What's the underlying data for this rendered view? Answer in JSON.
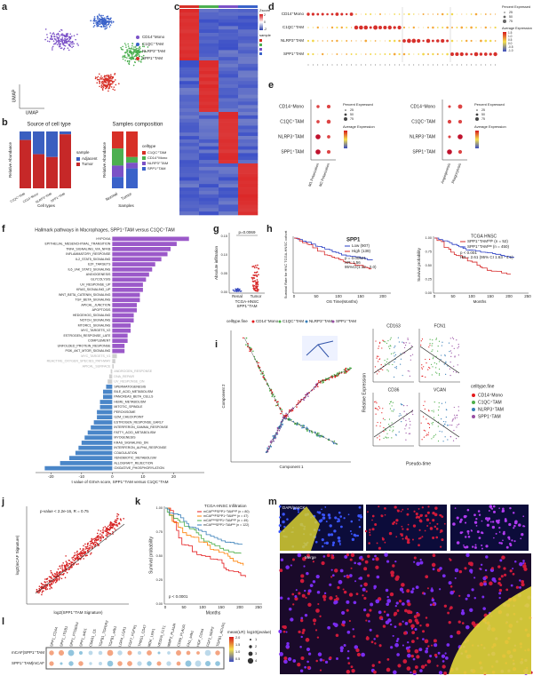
{
  "panels": {
    "a": {
      "label": "a",
      "axis_x": "UMAP",
      "axis_y": "UMAP",
      "legend": [
        "CD14⁺Mono",
        "C1QC⁺TAM",
        "NLRP3⁺TAM",
        "SPP1⁺TAM"
      ],
      "colors": [
        "#7b52c7",
        "#3a62c9",
        "#4caf50",
        "#d73027"
      ]
    },
    "b": {
      "label": "b",
      "title_left": "Source of cell type",
      "title_right": "Samples composition",
      "ylabel": "Relative Abundance",
      "xlabel_left": "Cell types",
      "xlabel_right": "Samples",
      "legend_left_title": "sample",
      "legend_left": [
        "Adjacent",
        "Tumor"
      ],
      "legend_right_title": "celltype",
      "legend_right": [
        "C1QC⁺TAM",
        "CD14⁺Mono",
        "NLRP3⁺TAM",
        "SPP1⁺TAM"
      ],
      "cats_left": [
        "C1QC⁺TAM",
        "CD14⁺Mono",
        "NLRP3⁺TAM",
        "SPP1⁺TAM"
      ],
      "cats_right": [
        "Normal",
        "Tumor"
      ]
    },
    "c": {
      "label": "c",
      "legend_title": "Zscore",
      "legend_ticks": [
        "2",
        "0",
        "-2"
      ],
      "legend2_title": "sample",
      "legend2": [
        "C1QC⁺TAM",
        "CD14⁺Mono",
        "NLRP3⁺TAM",
        "SPP1⁺TAM"
      ]
    },
    "d": {
      "label": "d",
      "rows": [
        "CD14⁺Mono",
        "C1QC⁺TAM",
        "NLRP3⁺TAM",
        "SPP1⁺TAM"
      ],
      "size_title": "Percent Expressed",
      "size_ticks": [
        "25",
        "50",
        "75"
      ],
      "color_title": "Average Expression",
      "color_ticks": [
        "1.5",
        "1.0",
        "0.5",
        "0.0",
        "-0.5",
        "-1.0"
      ]
    },
    "e": {
      "label": "e",
      "rows": [
        "CD14⁺Mono",
        "C1QC⁺TAM",
        "NLRP3⁺TAM",
        "SPP1⁺TAM"
      ],
      "groups": [
        "M1 Polarization",
        "M2 Polarization",
        "Angiogenesis",
        "Phagocytosis"
      ],
      "size_title": "Percent Expressed",
      "size_ticks": [
        "25",
        "50",
        "75"
      ],
      "color_title": "Average Expression"
    },
    "f": {
      "label": "f",
      "title": "Hallmark pathways in Macrophages, SPP1⁺TAM versus C1QC⁺TAM",
      "xlabel": "t value of GSVA score, SPP1⁺TAM versus C1QC⁺TAM",
      "xlim": [
        -25,
        30
      ],
      "xticks": [
        -20,
        -10,
        0,
        10,
        20
      ],
      "pathways": [
        "HYPOXIA",
        "EPITHELIAL_MESENCHYMAL_TRANSITION",
        "TNFA_SIGNALING_VIA_NFKB",
        "INFLAMMATORY_RESPONSE",
        "IL2_STAT5_SIGNALING",
        "E2F_TARGETS",
        "IL6_JAK_STAT3_SIGNALING",
        "ANGIOGENESIS",
        "GLYCOLYSIS",
        "UV_RESPONSE_UP",
        "KRAS_SIGNALING_UP",
        "WNT_BETA_CATENIN_SIGNALING",
        "TGF_BETA_SIGNALING",
        "APICAL_JUNCTION",
        "APOPTOSIS",
        "HEDGEHOG_SIGNALING",
        "NOTCH_SIGNALING",
        "MTORC1_SIGNALING",
        "MYC_TARGETS_V2",
        "ESTROGEN_RESPONSE_LATE",
        "COMPLEMENT",
        "UNFOLDED_PROTEIN_RESPONSE",
        "PI3K_AKT_MTOR_SIGNALING",
        "MYC_TARGETS_V1",
        "REACTIVE_OXYGEN_SPECIES_PATHWAY",
        "APICAL_SURFACE",
        "ANDROGEN_RESPONSE",
        "DNA_REPAIR",
        "UV_RESPONSE_DN",
        "SPERMATOGENESIS",
        "BILE_ACID_METABOLISM",
        "PANCREAS_BETA_CELLS",
        "HEME_METABOLISM",
        "MITOTIC_SPINDLE",
        "PEROXISOME",
        "G2M_CHECKPOINT",
        "ESTROGEN_RESPONSE_EARLY",
        "INTERFERON_GAMMA_RESPONSE",
        "FATTY_ACID_METABOLISM",
        "MYOGENESIS",
        "KRAS_SIGNALING_DN",
        "INTERFERON_ALPHA_RESPONSE",
        "COAGULATION",
        "XENOBIOTIC_METABOLISM",
        "ALLOGRAFT_REJECTION",
        "OXIDATIVE_PHOSPHORYLATION"
      ],
      "values": [
        25,
        21,
        19,
        18,
        16,
        14,
        13,
        12,
        11,
        10,
        10,
        9,
        9,
        8,
        8,
        7,
        7,
        6,
        6,
        5,
        5,
        4,
        4,
        1.5,
        1,
        0.5,
        -0.5,
        -1,
        -1.5,
        -2,
        -3,
        -3,
        -4,
        -4,
        -5,
        -5,
        -6,
        -7,
        -8,
        -9,
        -10,
        -11,
        -12,
        -14,
        -17,
        -22
      ]
    },
    "g": {
      "label": "g",
      "p": "p=0.0069",
      "ylabel": "Absolute infiltration",
      "yticks": [
        "0.15",
        "0.10",
        "0.05",
        "0.00"
      ],
      "cats": [
        "Renal",
        "Tumor"
      ],
      "cohort": "TCGA-HNSC",
      "cell": "SPP1⁺TAM"
    },
    "h": {
      "label": "h",
      "left": {
        "title": "SPP1",
        "legend": [
          "Low (907)",
          "High (139)"
        ],
        "stats": [
          "p = 0.00621",
          "HR: 1.56",
          "95%CI(1.12 - 2.0)"
        ],
        "ylabel": "Survival Rate for HNC TCGA-HNSC cohort",
        "xlabel": "OS Time(Months)",
        "xticks": [
          "0",
          "50",
          "100",
          "150",
          "200"
        ]
      },
      "right": {
        "title": "TCGA HNSC",
        "legend": [
          "SPP1⁺TAMʰⁱᵍʰ (n = 52)",
          "SPP1⁺TAMˡᵒʷ (n = 450)"
        ],
        "stats": [
          "p < 0.001",
          "HR = 2.61 (95% CI 1.63 - 4.1)"
        ],
        "ylabel": "Survival probability",
        "xlabel": "Months",
        "xticks": [
          "0",
          "50",
          "100",
          "150",
          "200",
          "250"
        ],
        "yticks": [
          "1.00",
          "0.75",
          "0.50",
          "0.25",
          "0.00"
        ]
      }
    },
    "i": {
      "label": "i",
      "legend_title": "celltype.fine",
      "legend": [
        "CD14⁺Mono",
        "C1QC⁺TAM",
        "NLRP3⁺TAM",
        "SPP1⁺TAM"
      ],
      "colors": [
        "#e41a1c",
        "#4daf4a",
        "#377eb8",
        "#984ea3"
      ],
      "xlabel": "Component 1",
      "ylabel": "Component 2",
      "genes": [
        "CD163",
        "FCN1",
        "CD36",
        "VCAN"
      ],
      "ylabel2": "Relative Expression",
      "xlabel2": "Pseudo-time"
    },
    "j": {
      "label": "j",
      "stats": "p-value < 2.2e-16, R = 0.75",
      "ylabel": "log2(mCAF Signature)",
      "xlabel": "log2(SPP1⁺TAM Signature)"
    },
    "k": {
      "label": "k",
      "title": "TCGA-HNSC Infiltration",
      "legend": [
        "mCAFʰⁱᵍʰSPP1⁺TAMʰⁱᵍʰ (n = 80)",
        "mCAFʰⁱᵍʰSPP1⁺TAMˡᵒʷ (n = 47)",
        "mCAFˡᵒʷSPP1⁺TAMʰⁱᵍʰ (n = 49)",
        "mCAFˡᵒʷSPP1⁺TAMˡᵒʷ (n = 122)"
      ],
      "colors": [
        "#e41a1c",
        "#ff7f00",
        "#4daf4a",
        "#377eb8"
      ],
      "p": "p < 0.0001",
      "ylabel": "Survival probability",
      "xlabel": "Months",
      "xticks": [
        "0",
        "50",
        "100",
        "150",
        "200",
        "250"
      ],
      "yticks": [
        "1.00",
        "0.75",
        "0.50",
        "0.25",
        "0.00"
      ]
    },
    "l": {
      "label": "l",
      "cols": [
        "SPP1_CD44",
        "SPP1_ITGB1",
        "SPP1_PTGER4",
        "SPP1_a4b1",
        "C5AR1_C5",
        "TGFB1_TGFbR2",
        "TGFB1_a4b1",
        "LGR4_LGR1",
        "FGF7_FGFR1",
        "THBS1_CD47",
        "MDK_LRP1",
        "VEGFA_FLT1",
        "MMP2_PLAUR",
        "CD99_PLAUR",
        "FN1_a4b1",
        "HGF_CD44",
        "FGF2_NRP2",
        "TGFB1_ACVR1"
      ],
      "rows": [
        "mCAF|SPP1⁺TAM",
        "SPP1⁺TAM|mCAF"
      ],
      "color_title": "mean(LR)",
      "color_ticks": [
        "2.0",
        "1.5",
        "1.0",
        "0.5"
      ],
      "size_title": "log10(pvalue)",
      "size_ticks": [
        "1",
        "2",
        "3",
        "4"
      ]
    },
    "m": {
      "label": "m",
      "tile1": "DAPI/panCK",
      "merge": "Merge"
    }
  }
}
